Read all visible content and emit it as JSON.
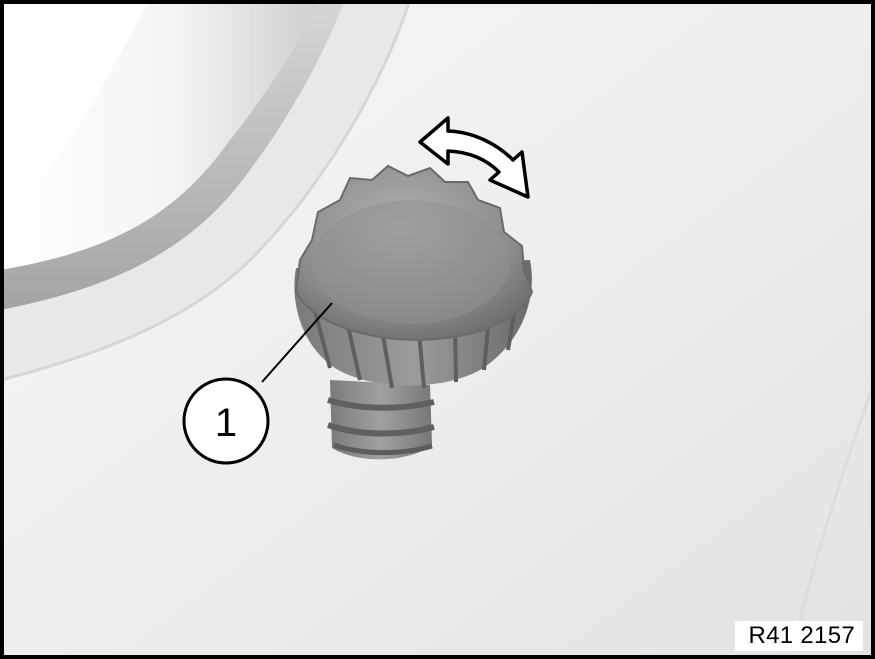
{
  "figure": {
    "reference_code": "R41 2157",
    "callout_number": "1",
    "icons": [
      "rotate-double-arrow-icon",
      "knurled-screw-icon"
    ],
    "colors": {
      "frame": "#000000",
      "callout_fill": "#ffffff",
      "screw_dark": "#6f6f6f",
      "screw_light": "#a6a6a6",
      "panel_bg": "#ececec",
      "recess_shade": "#bdbdbd"
    }
  }
}
